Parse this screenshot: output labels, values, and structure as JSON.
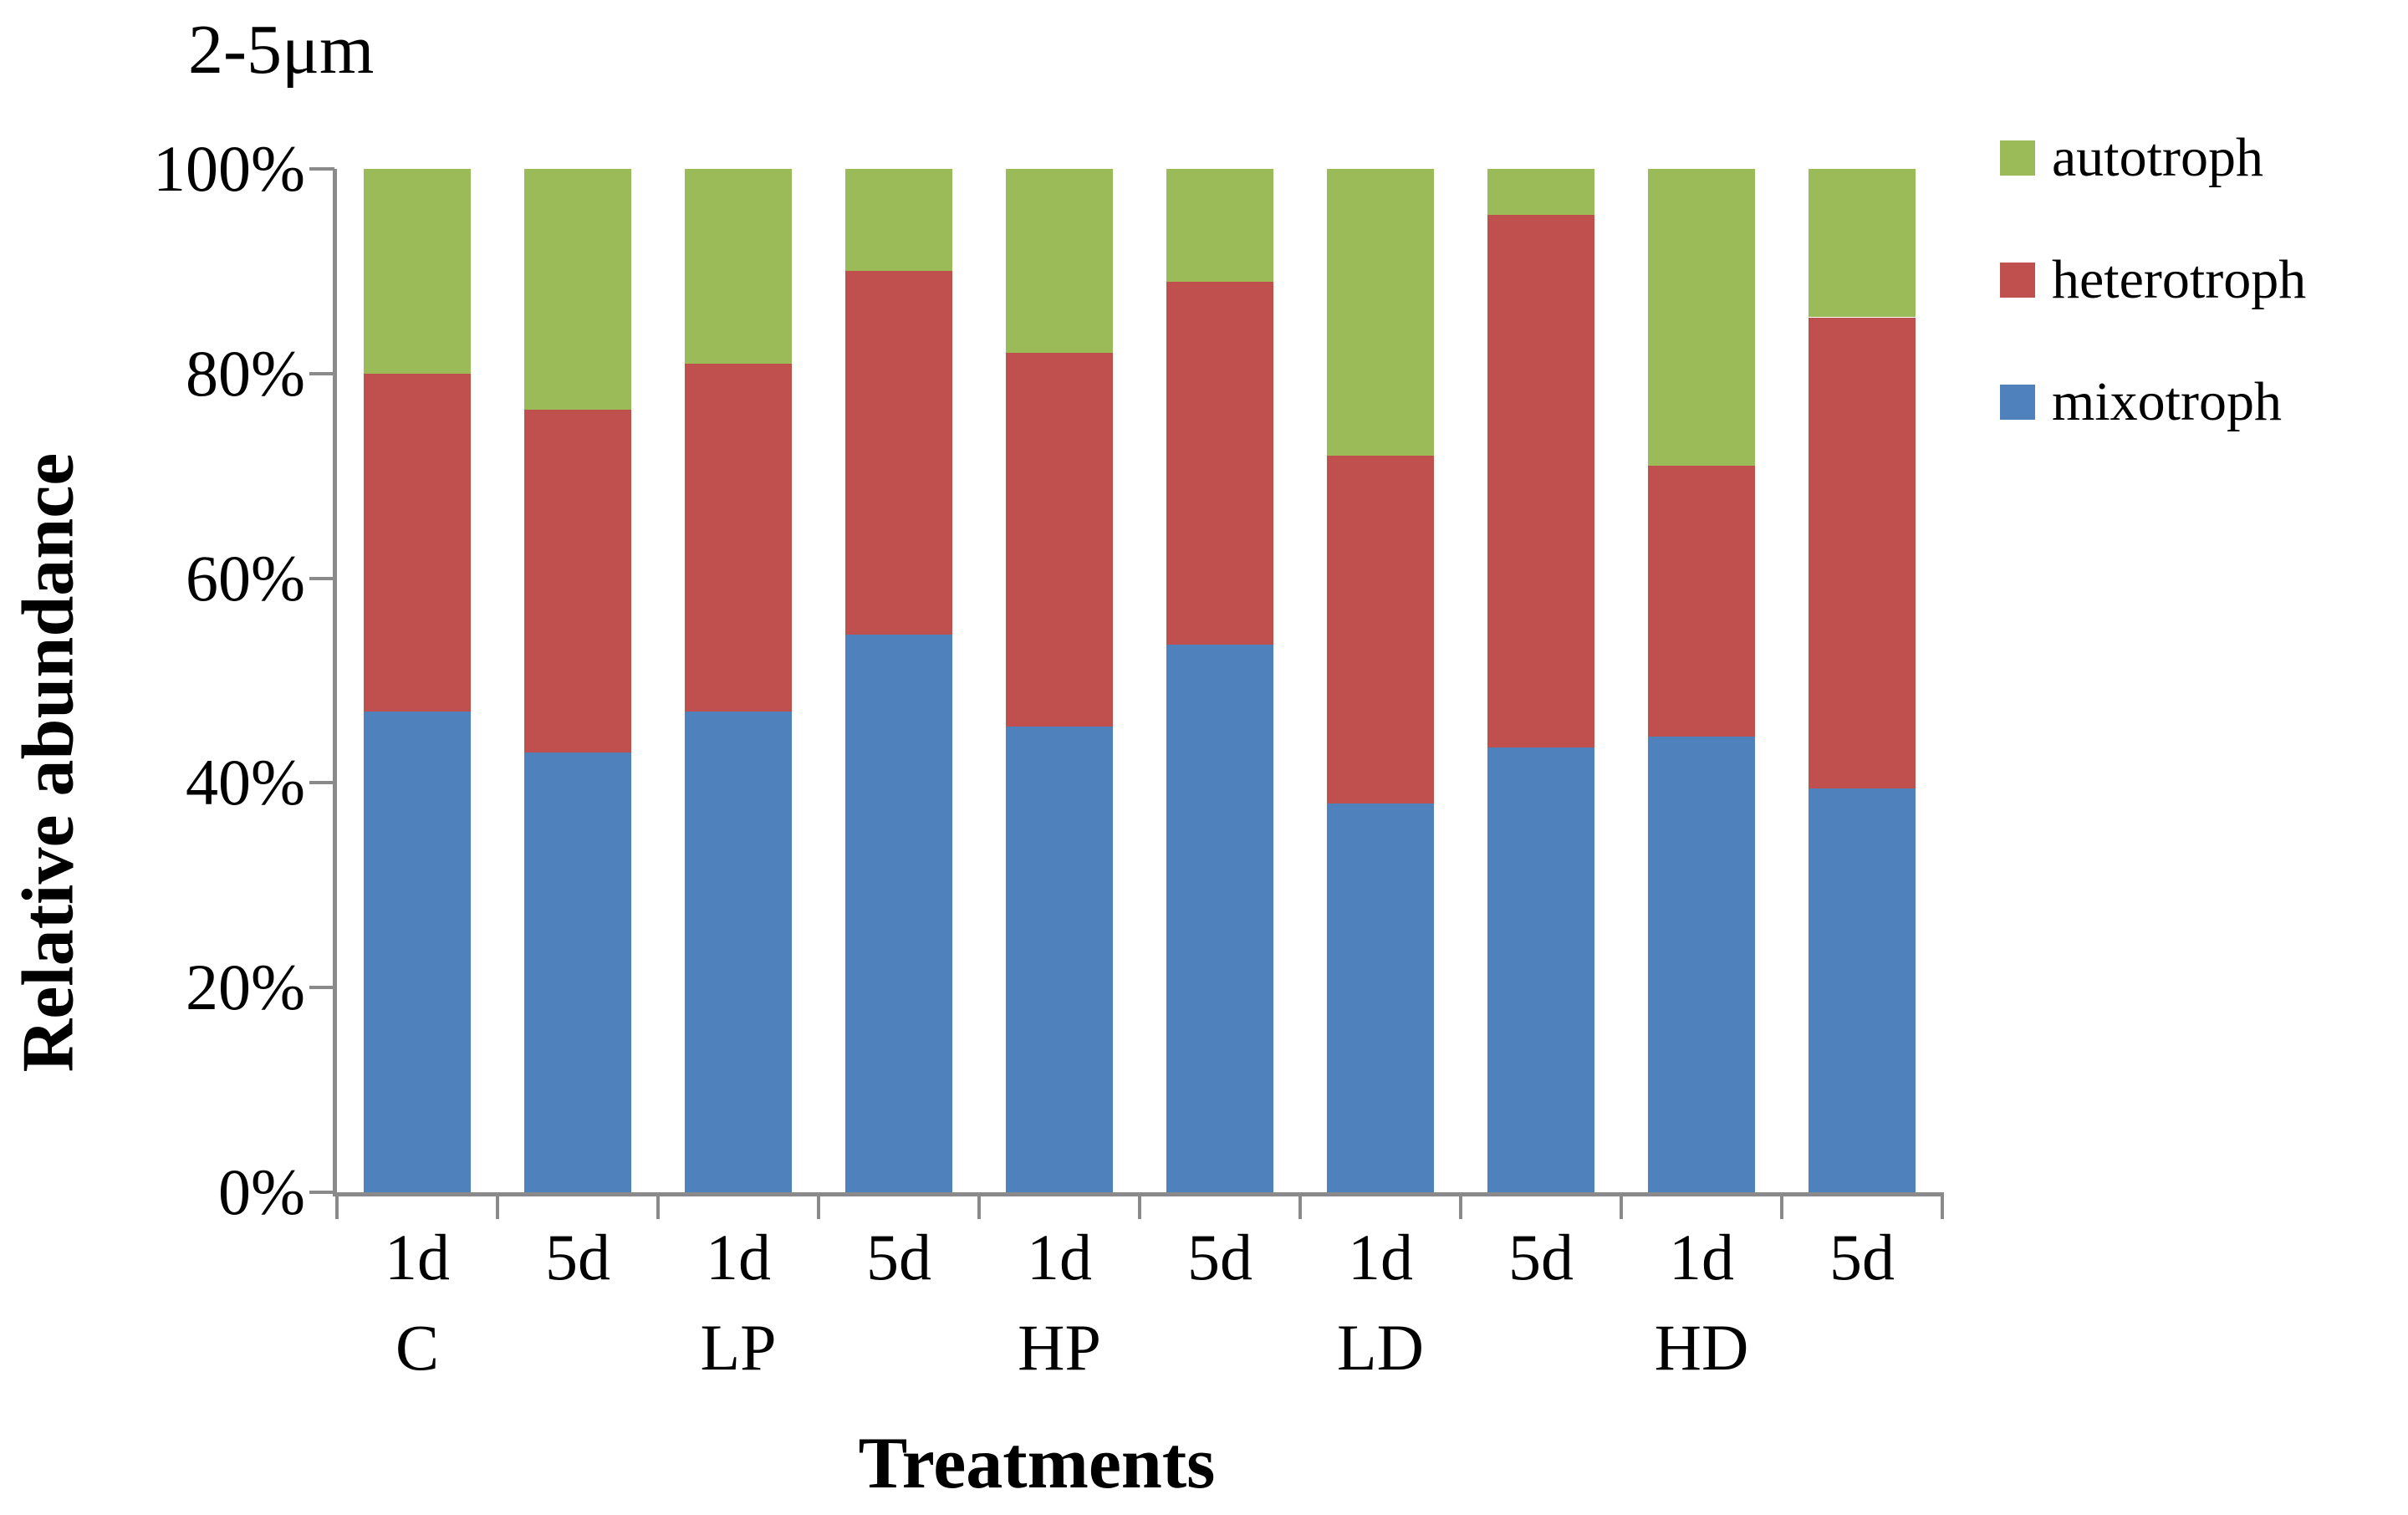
{
  "title": "2-5μm",
  "legend": {
    "items": [
      {
        "label": "autotroph",
        "color": "#9bbb59"
      },
      {
        "label": "heterotroph",
        "color": "#c0504d"
      },
      {
        "label": "mixotroph",
        "color": "#4f81bd"
      }
    ]
  },
  "colors": {
    "autotroph": "#9bbb59",
    "heterotroph": "#c0504d",
    "mixotroph": "#4f81bd",
    "axis": "#8a8a8a",
    "text": "#000000",
    "background": "#ffffff"
  },
  "chart_data": {
    "type": "bar",
    "stacked": true,
    "units": "percent",
    "title": "2-5μm",
    "xlabel": "Treatments",
    "ylabel": "Relative abundance",
    "ylim": [
      0,
      100
    ],
    "y_ticks": [
      "100%",
      "80%",
      "60%",
      "40%",
      "20%",
      "0%"
    ],
    "grid": false,
    "legend_position": "right",
    "categories": [
      "1d",
      "5d",
      "1d",
      "5d",
      "1d",
      "5d",
      "1d",
      "5d",
      "1d",
      "5d"
    ],
    "group_of_category": [
      "C",
      "",
      "LP",
      "",
      "HP",
      "",
      "LD",
      "",
      "HD",
      ""
    ],
    "groups": [
      "C",
      "LP",
      "HP",
      "LD",
      "HD"
    ],
    "series": [
      {
        "name": "mixotroph",
        "color": "#4f81bd",
        "values": [
          47,
          43,
          47,
          54.5,
          45.5,
          53.5,
          38,
          43.5,
          44.5,
          39.5
        ]
      },
      {
        "name": "heterotroph",
        "color": "#c0504d",
        "values": [
          33,
          33.5,
          34,
          35.5,
          36.5,
          35.5,
          34,
          52,
          26.5,
          46
        ]
      },
      {
        "name": "autotroph",
        "color": "#9bbb59",
        "values": [
          20,
          23.5,
          19,
          10,
          18,
          11,
          28,
          4.5,
          29,
          14.5
        ]
      }
    ]
  }
}
